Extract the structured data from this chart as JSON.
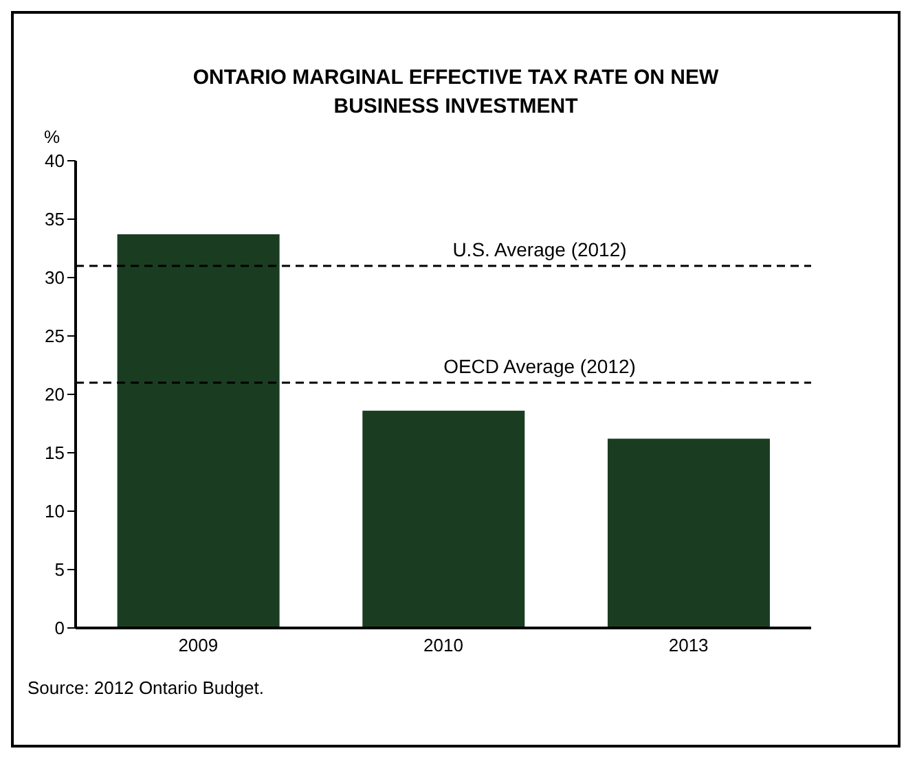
{
  "chart_data": {
    "type": "bar",
    "title": "ONTARIO MARGINAL EFFECTIVE TAX RATE ON NEW BUSINESS INVESTMENT",
    "ylabel": "%",
    "categories": [
      "2009",
      "2010",
      "2013"
    ],
    "values": [
      33.7,
      18.6,
      16.2
    ],
    "color": "#1a3d22",
    "ylim": [
      0,
      40
    ],
    "yticks": [
      0,
      5,
      10,
      15,
      20,
      25,
      30,
      35,
      40
    ],
    "grid": false,
    "legend": false,
    "ref_lines": [
      {
        "axis": "y",
        "value": 31,
        "label": "U.S. Average (2012)",
        "color": "#000000",
        "line_style": "dashed"
      },
      {
        "axis": "y",
        "value": 21,
        "label": "OECD Average (2012)",
        "color": "#000000",
        "line_style": "dashed"
      }
    ],
    "annotations": [
      "Source: 2012 Ontario Budget."
    ]
  }
}
